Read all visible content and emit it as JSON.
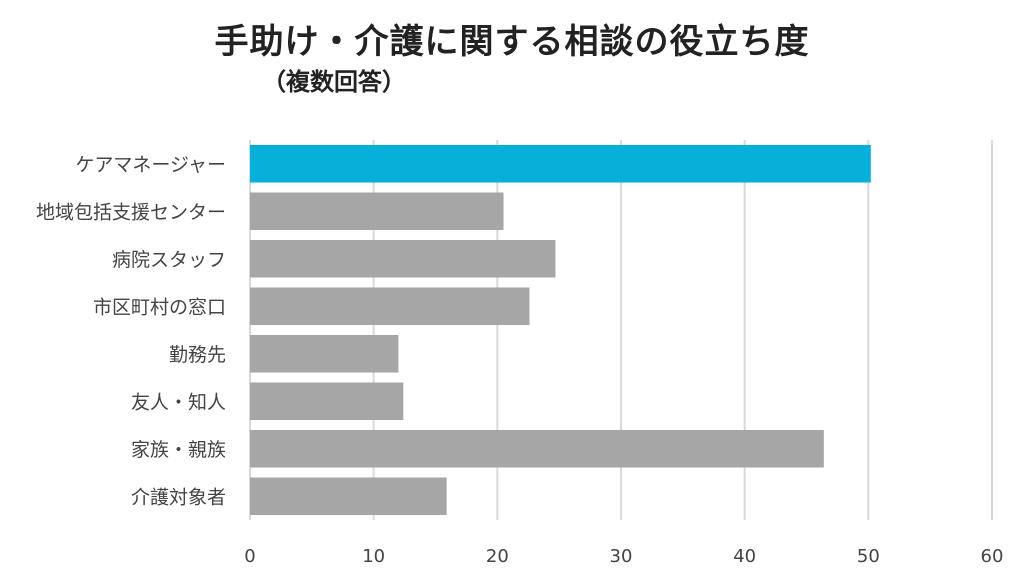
{
  "chart_data": {
    "type": "bar",
    "orientation": "horizontal",
    "title": "手助け・介護に関する相談の役立ち度",
    "subtitle": "（複数回答）",
    "xlabel": "",
    "ylabel": "",
    "categories": [
      "ケアマネージャー",
      "地域包括支援センター",
      "病院スタッフ",
      "市区町村の窓口",
      "勤務先",
      "友人・知人",
      "家族・親族",
      "介護対象者"
    ],
    "values": [
      50.2,
      20.5,
      24.7,
      22.6,
      12.0,
      12.4,
      46.4,
      15.9
    ],
    "xlim": [
      0,
      60
    ],
    "xticks": [
      "0",
      "10",
      "20",
      "30",
      "40",
      "50",
      "60"
    ],
    "grid": "vertical",
    "legend": "none",
    "colors": {
      "highlight": "#06b0d8",
      "default": "#a6a6a6",
      "grid": "#d9d9d9"
    },
    "highlight_index": 0
  }
}
